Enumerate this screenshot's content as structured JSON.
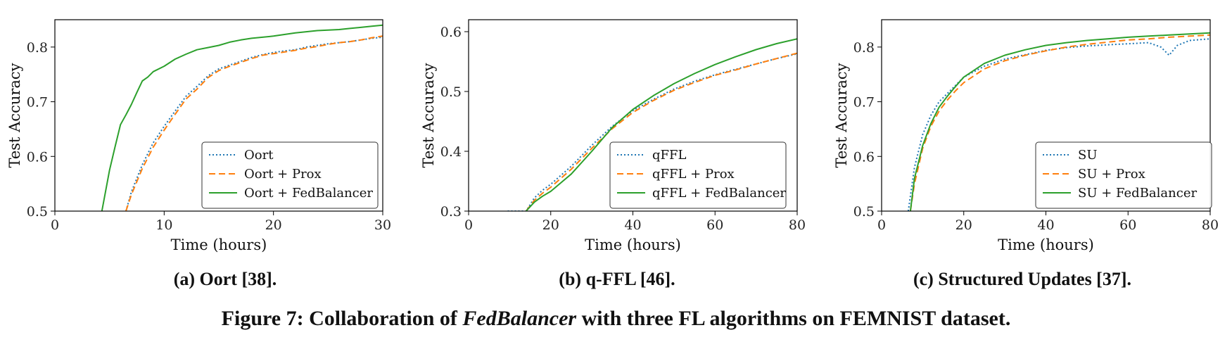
{
  "figure": {
    "caption_prefix": "Figure 7: Collaboration of ",
    "caption_em": "FedBalancer",
    "caption_suffix": " with three FL algorithms on FEMNIST dataset."
  },
  "colors": {
    "blue": "#1f77b4",
    "orange": "#ff7f0e",
    "green": "#2ca02c"
  },
  "chart_data": [
    {
      "type": "line",
      "subcaption": "(a) Oort [38].",
      "xlabel": "Time (hours)",
      "ylabel": "Test Accuracy",
      "xlim": [
        0,
        30
      ],
      "ylim": [
        0.5,
        0.85
      ],
      "xticks": [
        0,
        10,
        20,
        30
      ],
      "yticks": [
        0.5,
        0.6,
        0.7,
        0.8
      ],
      "legend_position": "lower-right",
      "grid": false,
      "series": [
        {
          "name": "Oort",
          "style": "dotted",
          "color": "blue",
          "x": [
            6.5,
            7,
            8,
            9,
            10,
            11,
            12,
            13,
            14,
            15,
            16,
            17,
            18,
            19,
            20,
            21,
            22,
            23,
            24,
            25,
            26,
            27,
            28,
            29,
            30
          ],
          "y": [
            0.5,
            0.535,
            0.585,
            0.625,
            0.655,
            0.683,
            0.71,
            0.728,
            0.747,
            0.76,
            0.767,
            0.774,
            0.781,
            0.786,
            0.79,
            0.793,
            0.795,
            0.8,
            0.803,
            0.806,
            0.808,
            0.81,
            0.813,
            0.816,
            0.818
          ]
        },
        {
          "name": "Oort + Prox",
          "style": "dashed",
          "color": "orange",
          "x": [
            6.5,
            7,
            8,
            9,
            10,
            11,
            12,
            13,
            14,
            15,
            16,
            17,
            18,
            19,
            20,
            21,
            22,
            23,
            24,
            25,
            26,
            27,
            28,
            29,
            30
          ],
          "y": [
            0.5,
            0.53,
            0.578,
            0.617,
            0.648,
            0.677,
            0.705,
            0.723,
            0.744,
            0.757,
            0.765,
            0.772,
            0.779,
            0.785,
            0.788,
            0.791,
            0.794,
            0.798,
            0.801,
            0.805,
            0.808,
            0.81,
            0.813,
            0.817,
            0.82
          ]
        },
        {
          "name": "Oort + FedBalancer",
          "style": "solid",
          "color": "green",
          "x": [
            4.3,
            5,
            5.5,
            6,
            6.5,
            7,
            7.5,
            8,
            8.5,
            9,
            10,
            11,
            12,
            13,
            14,
            15,
            16,
            17,
            18,
            19,
            20,
            21,
            22,
            23,
            24,
            25,
            26,
            27,
            28,
            29,
            30
          ],
          "y": [
            0.5,
            0.575,
            0.617,
            0.658,
            0.676,
            0.695,
            0.717,
            0.738,
            0.745,
            0.755,
            0.765,
            0.778,
            0.787,
            0.795,
            0.799,
            0.803,
            0.809,
            0.813,
            0.816,
            0.818,
            0.82,
            0.823,
            0.826,
            0.828,
            0.83,
            0.831,
            0.832,
            0.834,
            0.836,
            0.838,
            0.84
          ]
        }
      ]
    },
    {
      "type": "line",
      "subcaption": "(b) q-FFL [46].",
      "xlabel": "Time (hours)",
      "ylabel": "Test Accuracy",
      "xlim": [
        0,
        80
      ],
      "ylim": [
        0.3,
        0.62
      ],
      "xticks": [
        0,
        20,
        40,
        60,
        80
      ],
      "yticks": [
        0.3,
        0.4,
        0.5,
        0.6
      ],
      "legend_position": "lower-right",
      "grid": false,
      "series": [
        {
          "name": "qFFL",
          "style": "dotted",
          "color": "blue",
          "x": [
            9.5,
            12,
            14,
            16,
            18,
            20,
            25,
            30,
            35,
            40,
            45,
            50,
            55,
            60,
            65,
            70,
            75,
            80
          ],
          "y": [
            0.3,
            0.3,
            0.3,
            0.322,
            0.335,
            0.345,
            0.375,
            0.41,
            0.442,
            0.468,
            0.487,
            0.504,
            0.517,
            0.528,
            0.537,
            0.546,
            0.555,
            0.563
          ]
        },
        {
          "name": "qFFL + Prox",
          "style": "dashed",
          "color": "orange",
          "x": [
            14,
            16,
            18,
            20,
            25,
            30,
            35,
            40,
            45,
            50,
            55,
            60,
            65,
            70,
            75,
            80
          ],
          "y": [
            0.3,
            0.318,
            0.33,
            0.34,
            0.37,
            0.405,
            0.438,
            0.465,
            0.485,
            0.502,
            0.515,
            0.527,
            0.536,
            0.546,
            0.555,
            0.564
          ]
        },
        {
          "name": "qFFL + FedBalancer",
          "style": "solid",
          "color": "green",
          "x": [
            14,
            16,
            18,
            20,
            25,
            30,
            35,
            40,
            45,
            50,
            55,
            60,
            65,
            70,
            75,
            80
          ],
          "y": [
            0.3,
            0.315,
            0.325,
            0.333,
            0.362,
            0.4,
            0.44,
            0.47,
            0.493,
            0.513,
            0.53,
            0.545,
            0.558,
            0.57,
            0.58,
            0.588
          ]
        }
      ]
    },
    {
      "type": "line",
      "subcaption": "(c) Structured Updates [37].",
      "xlabel": "Time (hours)",
      "ylabel": "Test Accuracy",
      "xlim": [
        0,
        80
      ],
      "ylim": [
        0.5,
        0.85
      ],
      "xticks": [
        0,
        20,
        40,
        60,
        80
      ],
      "yticks": [
        0.5,
        0.6,
        0.7,
        0.8
      ],
      "legend_position": "lower-right",
      "grid": false,
      "series": [
        {
          "name": "SU",
          "style": "dotted",
          "color": "blue",
          "x": [
            6.5,
            8,
            10,
            12,
            14,
            16,
            18,
            20,
            25,
            30,
            35,
            40,
            45,
            50,
            55,
            60,
            65,
            68,
            70,
            72,
            75,
            80
          ],
          "y": [
            0.5,
            0.58,
            0.64,
            0.675,
            0.7,
            0.715,
            0.73,
            0.745,
            0.765,
            0.778,
            0.786,
            0.794,
            0.799,
            0.802,
            0.804,
            0.806,
            0.808,
            0.8,
            0.785,
            0.803,
            0.812,
            0.815
          ]
        },
        {
          "name": "SU + Prox",
          "style": "dashed",
          "color": "orange",
          "x": [
            7,
            8,
            10,
            12,
            14,
            16,
            18,
            20,
            25,
            30,
            35,
            40,
            45,
            50,
            55,
            60,
            65,
            70,
            75,
            80
          ],
          "y": [
            0.5,
            0.55,
            0.615,
            0.655,
            0.683,
            0.703,
            0.72,
            0.735,
            0.76,
            0.775,
            0.785,
            0.793,
            0.8,
            0.805,
            0.809,
            0.813,
            0.815,
            0.818,
            0.82,
            0.822
          ]
        },
        {
          "name": "SU + FedBalancer",
          "style": "solid",
          "color": "green",
          "x": [
            7,
            8,
            10,
            12,
            14,
            16,
            18,
            20,
            25,
            30,
            35,
            40,
            45,
            50,
            55,
            60,
            65,
            70,
            75,
            80
          ],
          "y": [
            0.5,
            0.56,
            0.62,
            0.66,
            0.69,
            0.71,
            0.728,
            0.745,
            0.77,
            0.785,
            0.795,
            0.803,
            0.808,
            0.812,
            0.815,
            0.818,
            0.82,
            0.822,
            0.824,
            0.826
          ]
        }
      ]
    }
  ]
}
